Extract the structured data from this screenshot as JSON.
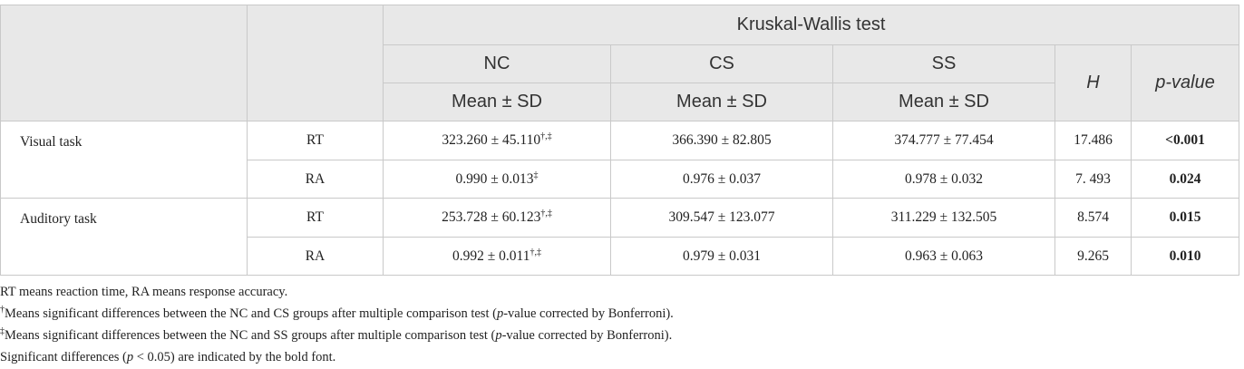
{
  "table": {
    "header": {
      "group": "Kruskal-Wallis test",
      "groups": [
        "NC",
        "CS",
        "SS"
      ],
      "stat_labels": [
        "Mean ± SD",
        "Mean ± SD",
        "Mean ± SD"
      ],
      "h": "H",
      "p": "p-value"
    },
    "rows": [
      {
        "task": "Visual task",
        "measure": "RT",
        "cells": [
          {
            "text": "323.260 ± 45.110",
            "sup": "†,‡"
          },
          {
            "text": "366.390 ± 82.805"
          },
          {
            "text": "374.777 ± 77.454"
          }
        ],
        "h": "17.486",
        "p": "<0.001"
      },
      {
        "measure": "RA",
        "cells": [
          {
            "text": "0.990 ± 0.013",
            "sup": "‡"
          },
          {
            "text": "0.976 ± 0.037"
          },
          {
            "text": "0.978 ± 0.032"
          }
        ],
        "h": "7. 493",
        "p": "0.024"
      },
      {
        "task": "Auditory task",
        "measure": "RT",
        "cells": [
          {
            "text": "253.728 ± 60.123",
            "sup": "†,‡"
          },
          {
            "text": "309.547 ± 123.077"
          },
          {
            "text": "311.229 ± 132.505"
          }
        ],
        "h": "8.574",
        "p": "0.015"
      },
      {
        "measure": "RA",
        "cells": [
          {
            "text": "0.992 ± 0.011",
            "sup": "†,‡"
          },
          {
            "text": "0.979 ± 0.031"
          },
          {
            "text": "0.963 ± 0.063"
          }
        ],
        "h": "9.265",
        "p": "0.010"
      }
    ]
  },
  "notes": [
    [
      "RT means reaction time, RA means response accuracy."
    ],
    [
      "†",
      "Means significant differences between the NC and CS groups after multiple comparison test (",
      "p",
      "-value corrected by Bonferroni)."
    ],
    [
      "‡",
      "Means significant differences between the NC and SS groups after multiple comparison test (",
      "p",
      "-value corrected by Bonferroni)."
    ],
    [
      "Significant differences (",
      "p",
      " < 0.05) are indicated by the bold font."
    ]
  ]
}
